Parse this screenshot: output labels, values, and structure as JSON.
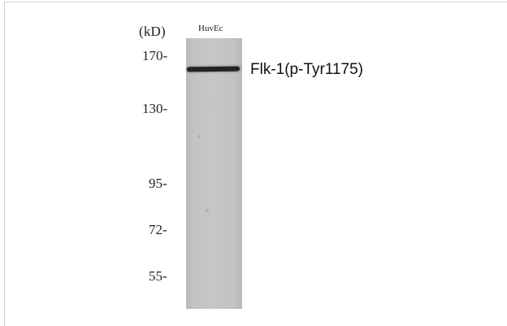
{
  "blot": {
    "unit_label": "(kD)",
    "lane_label": "HuvEc",
    "band_label": "Flk-1(p-Tyr1175)",
    "markers": [
      "170-",
      "130-",
      "95-",
      "72-",
      "55-"
    ]
  }
}
